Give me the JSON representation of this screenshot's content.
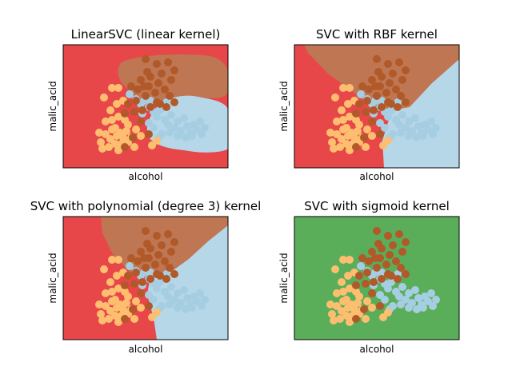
{
  "colors": {
    "class0": "#a6cee3",
    "class1": "#b15928",
    "class2": "#fdbf6f",
    "region_red": "#e8474a",
    "region_brown": "#bf7652",
    "region_blue": "#b6d7e8",
    "region_green": "#5bae59"
  },
  "chart_data": [
    {
      "type": "scatter",
      "title": "LinearSVC (linear kernel)",
      "xlabel": "alcohol",
      "ylabel": "malic_acid",
      "xticks": "none",
      "yticks": "none",
      "background": "decision regions (red, brown, light blue)"
    },
    {
      "type": "scatter",
      "title": "SVC with RBF kernel",
      "xlabel": "alcohol",
      "ylabel": "malic_acid",
      "xticks": "none",
      "yticks": "none",
      "background": "decision regions (red, brown, light blue)"
    },
    {
      "type": "scatter",
      "title": "SVC with polynomial (degree 3) kernel",
      "xlabel": "alcohol",
      "ylabel": "malic_acid",
      "xticks": "none",
      "yticks": "none",
      "background": "decision regions (red, brown, light blue)"
    },
    {
      "type": "scatter",
      "title": "SVC with sigmoid kernel",
      "xlabel": "alcohol",
      "ylabel": "malic_acid",
      "xticks": "none",
      "yticks": "none",
      "background": "single decision region (green)"
    }
  ],
  "points": {
    "class0": [
      [
        162,
        118
      ],
      [
        170,
        124
      ],
      [
        176,
        130
      ],
      [
        180,
        126
      ],
      [
        186,
        134
      ],
      [
        192,
        140
      ],
      [
        196,
        146
      ],
      [
        200,
        138
      ],
      [
        206,
        150
      ],
      [
        210,
        156
      ],
      [
        214,
        144
      ],
      [
        218,
        160
      ],
      [
        222,
        152
      ],
      [
        226,
        164
      ],
      [
        230,
        148
      ],
      [
        234,
        158
      ],
      [
        238,
        166
      ],
      [
        242,
        156
      ],
      [
        246,
        162
      ],
      [
        250,
        152
      ],
      [
        186,
        154
      ],
      [
        192,
        160
      ],
      [
        202,
        168
      ],
      [
        212,
        166
      ],
      [
        222,
        170
      ],
      [
        232,
        172
      ],
      [
        240,
        170
      ],
      [
        252,
        168
      ],
      [
        256,
        160
      ],
      [
        198,
        172
      ],
      [
        178,
        142
      ],
      [
        188,
        126
      ],
      [
        208,
        128
      ]
    ],
    "class1": [
      [
        182,
        74
      ],
      [
        196,
        80
      ],
      [
        210,
        78
      ],
      [
        218,
        88
      ],
      [
        202,
        92
      ],
      [
        188,
        96
      ],
      [
        176,
        100
      ],
      [
        164,
        108
      ],
      [
        172,
        112
      ],
      [
        186,
        108
      ],
      [
        198,
        104
      ],
      [
        206,
        112
      ],
      [
        212,
        120
      ],
      [
        194,
        116
      ],
      [
        182,
        120
      ],
      [
        170,
        126
      ],
      [
        160,
        130
      ],
      [
        156,
        142
      ],
      [
        168,
        140
      ],
      [
        178,
        138
      ],
      [
        188,
        134
      ],
      [
        200,
        130
      ],
      [
        208,
        134
      ],
      [
        218,
        128
      ],
      [
        176,
        152
      ],
      [
        186,
        168
      ],
      [
        166,
        172
      ],
      [
        156,
        184
      ],
      [
        180,
        108
      ],
      [
        214,
        100
      ],
      [
        196,
        128
      ],
      [
        184,
        90
      ]
    ],
    "class2": [
      [
        130,
        122
      ],
      [
        140,
        110
      ],
      [
        148,
        110
      ],
      [
        138,
        138
      ],
      [
        146,
        130
      ],
      [
        154,
        126
      ],
      [
        132,
        152
      ],
      [
        140,
        150
      ],
      [
        148,
        146
      ],
      [
        156,
        150
      ],
      [
        124,
        166
      ],
      [
        132,
        168
      ],
      [
        138,
        174
      ],
      [
        144,
        160
      ],
      [
        150,
        166
      ],
      [
        158,
        164
      ],
      [
        164,
        172
      ],
      [
        170,
        162
      ],
      [
        176,
        170
      ],
      [
        144,
        180
      ],
      [
        152,
        180
      ],
      [
        160,
        178
      ],
      [
        168,
        184
      ],
      [
        136,
        184
      ],
      [
        126,
        178
      ],
      [
        140,
        162
      ],
      [
        154,
        172
      ],
      [
        160,
        156
      ],
      [
        146,
        170
      ],
      [
        190,
        182
      ],
      [
        196,
        176
      ],
      [
        128,
        186
      ],
      [
        148,
        188
      ]
    ]
  }
}
